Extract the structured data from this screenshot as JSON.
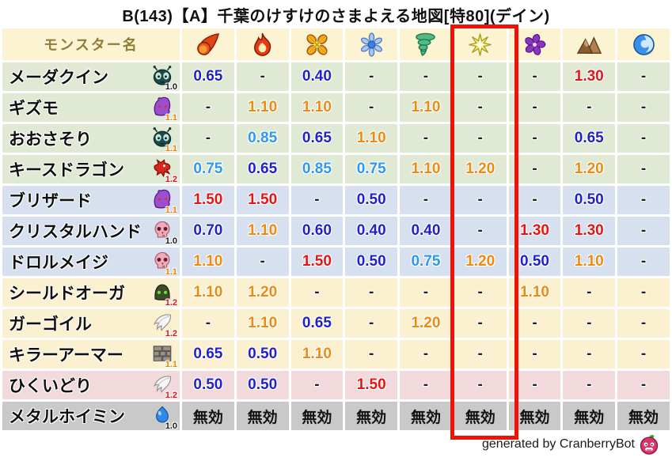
{
  "chart_data": {
    "type": "table",
    "title": "B(143)【A】千葉のけすけのさまよえる地図[特80](デイン)",
    "column_header": "モンスター名",
    "element_columns": [
      "meteor",
      "flame",
      "burst",
      "snowflake",
      "tornado",
      "lightning",
      "dark-pinwheel",
      "mountain",
      "wave"
    ],
    "highlighted_column_index": 5,
    "highlighted_element": "lightning",
    "nullify_label": "無効",
    "rows": [
      {
        "name": "メーダクイン",
        "family_icon": "bug",
        "level": "1.0",
        "tint": "green",
        "values": [
          "0.65",
          "-",
          "0.40",
          "-",
          "-",
          "-",
          "-",
          "1.30",
          "-"
        ]
      },
      {
        "name": "ギズモ",
        "family_icon": "ghost",
        "level": "1.1",
        "tint": "green",
        "values": [
          "-",
          "1.10",
          "1.10",
          "-",
          "1.10",
          "-",
          "-",
          "-",
          "-"
        ]
      },
      {
        "name": "おおさそり",
        "family_icon": "bug",
        "level": "1.1",
        "tint": "green",
        "values": [
          "-",
          "0.85",
          "0.65",
          "1.10",
          "-",
          "-",
          "-",
          "0.65",
          "-"
        ]
      },
      {
        "name": "キースドラゴン",
        "family_icon": "dragon",
        "level": "1.2",
        "tint": "green",
        "values": [
          "0.75",
          "0.65",
          "0.85",
          "0.75",
          "1.10",
          "1.20",
          "-",
          "1.20",
          "-"
        ]
      },
      {
        "name": "ブリザード",
        "family_icon": "ghost",
        "level": "1.1",
        "tint": "blue",
        "values": [
          "1.50",
          "1.50",
          "-",
          "0.50",
          "-",
          "-",
          "-",
          "0.50",
          "-"
        ]
      },
      {
        "name": "クリスタルハンド",
        "family_icon": "skull",
        "level": "1.0",
        "tint": "blue",
        "values": [
          "0.70",
          "1.10",
          "0.60",
          "0.40",
          "0.40",
          "-",
          "1.30",
          "1.30",
          "-"
        ]
      },
      {
        "name": "ドロルメイジ",
        "family_icon": "skull",
        "level": "1.1",
        "tint": "blue",
        "values": [
          "1.10",
          "-",
          "1.50",
          "0.50",
          "0.75",
          "1.20",
          "0.50",
          "1.10",
          "-"
        ]
      },
      {
        "name": "シールドオーガ",
        "family_icon": "helmet",
        "level": "1.2",
        "tint": "cream",
        "values": [
          "1.10",
          "1.20",
          "-",
          "-",
          "-",
          "-",
          "1.10",
          "-",
          "-"
        ]
      },
      {
        "name": "ガーゴイル",
        "family_icon": "wing",
        "level": "1.2",
        "tint": "cream",
        "values": [
          "-",
          "1.10",
          "0.65",
          "-",
          "1.20",
          "-",
          "-",
          "-",
          "-"
        ]
      },
      {
        "name": "キラーアーマー",
        "family_icon": "bricks",
        "level": "1.1",
        "tint": "cream",
        "values": [
          "0.65",
          "0.50",
          "1.10",
          "-",
          "-",
          "-",
          "-",
          "-",
          "-"
        ]
      },
      {
        "name": "ひくいどり",
        "family_icon": "wing",
        "level": "1.2",
        "tint": "pink",
        "values": [
          "0.50",
          "0.50",
          "-",
          "1.50",
          "-",
          "-",
          "-",
          "-",
          "-"
        ]
      },
      {
        "name": "メタルホイミン",
        "family_icon": "slime",
        "level": "1.0",
        "tint": "gray",
        "values": [
          "無効",
          "無効",
          "無効",
          "無効",
          "無効",
          "無効",
          "無効",
          "無効",
          "無効"
        ]
      }
    ]
  },
  "colors": {
    "tints": {
      "green": "#dfe9d3",
      "blue": "#d7e0ee",
      "cream": "#fbf0d0",
      "pink": "#f2d9dc",
      "gray": "#c9c9c9",
      "header": "#fcf3d2"
    },
    "values": {
      "strong": "#2121cb",
      "mild": "#2e97ef",
      "weak": "#ef8a10",
      "vweak": "#e81414",
      "neutral": "#222222"
    },
    "levels": {
      "1.0": "#1a1a1a",
      "1.1": "#ef8200",
      "1.2": "#e01313"
    },
    "highlight": "#ee1208"
  },
  "footer": {
    "text": "generated by CranberryBot",
    "icon": "cranberry-icon"
  }
}
